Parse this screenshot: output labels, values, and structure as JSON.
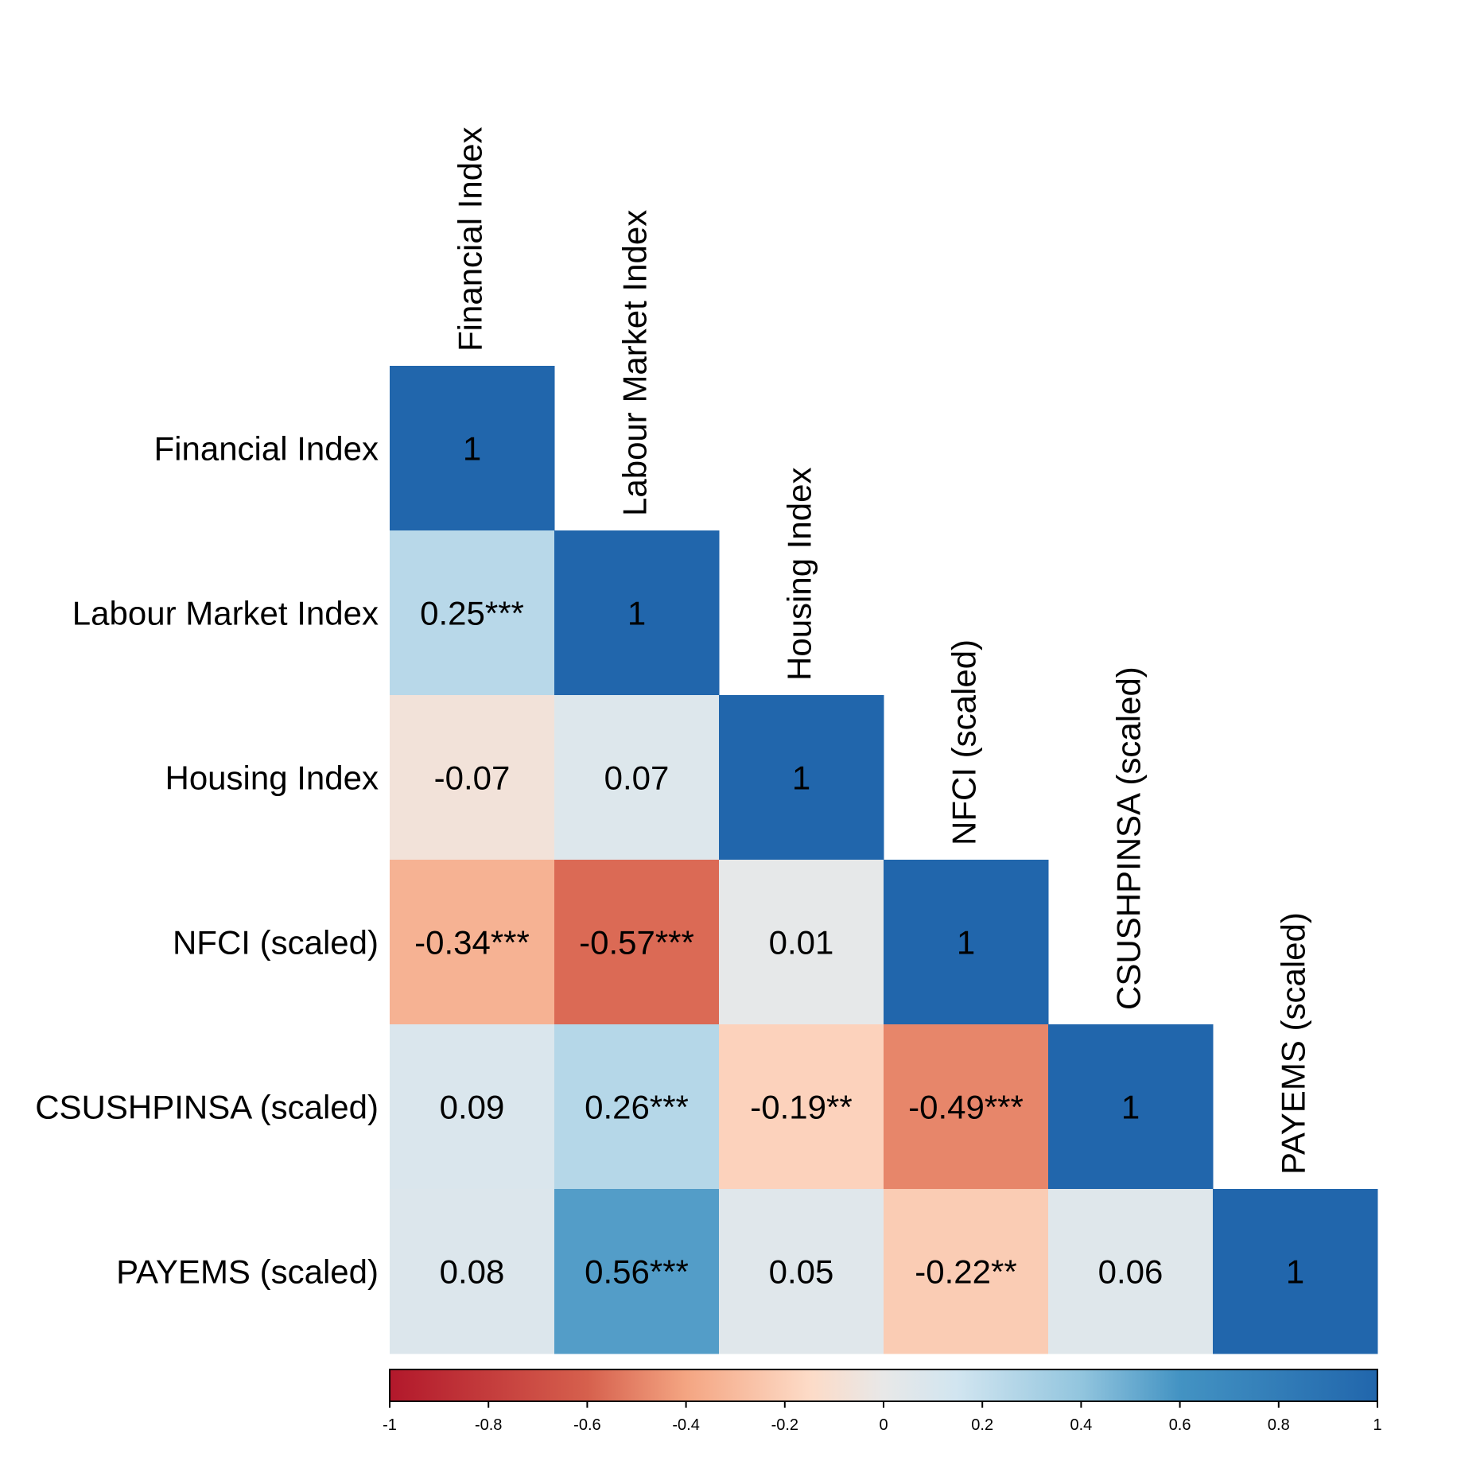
{
  "chart_data": {
    "type": "heatmap",
    "title": "",
    "variables": [
      "Financial Index",
      "Labour Market Index",
      "Housing Index",
      "NFCI (scaled)",
      "CSUSHPINSA (scaled)",
      "PAYEMS (scaled)"
    ],
    "matrix_lower": [
      [
        1
      ],
      [
        0.25,
        1
      ],
      [
        -0.07,
        0.07,
        1
      ],
      [
        -0.34,
        -0.57,
        0.01,
        1
      ],
      [
        0.09,
        0.26,
        -0.19,
        -0.49,
        1
      ],
      [
        0.08,
        0.56,
        0.05,
        -0.22,
        0.06,
        1
      ]
    ],
    "cell_labels": [
      [
        "1"
      ],
      [
        "0.25***",
        "1"
      ],
      [
        "-0.07",
        "0.07",
        "1"
      ],
      [
        "-0.34***",
        "-0.57***",
        "0.01",
        "1"
      ],
      [
        "0.09",
        "0.26***",
        "-0.19**",
        "-0.49***",
        "1"
      ],
      [
        "0.08",
        "0.56***",
        "0.05",
        "-0.22**",
        "0.06",
        "1"
      ]
    ],
    "color_scale": {
      "range": [
        -1,
        1
      ],
      "ticks": [
        -1,
        -0.8,
        -0.6,
        -0.4,
        -0.2,
        0,
        0.2,
        0.4,
        0.6,
        0.8,
        1
      ],
      "tick_labels": [
        "-1",
        "-0.8",
        "-0.6",
        "-0.4",
        "-0.2",
        "0",
        "0.2",
        "0.4",
        "0.6",
        "0.8",
        "1"
      ],
      "stops": [
        {
          "v": -1,
          "color": "#b2182b"
        },
        {
          "v": -0.6,
          "color": "#d6604d"
        },
        {
          "v": -0.4,
          "color": "#f4a582"
        },
        {
          "v": -0.15,
          "color": "#fddbc7"
        },
        {
          "v": 0,
          "color": "#e8e8e8"
        },
        {
          "v": 0.15,
          "color": "#d1e5f0"
        },
        {
          "v": 0.4,
          "color": "#92c5de"
        },
        {
          "v": 0.6,
          "color": "#4393c3"
        },
        {
          "v": 1,
          "color": "#2166ac"
        }
      ]
    },
    "legend_position": "bottom"
  }
}
